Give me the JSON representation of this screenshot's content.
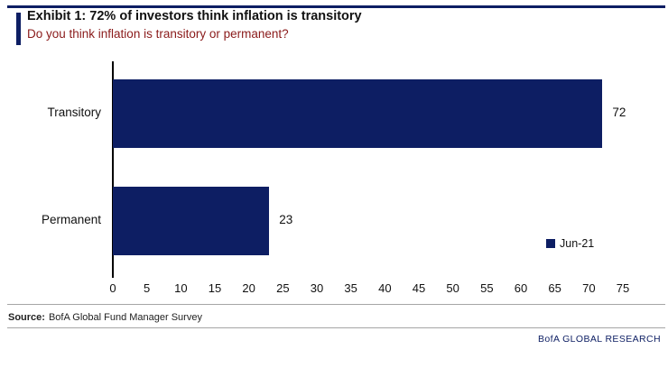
{
  "header": {
    "title": "Exhibit 1: 72% of investors think inflation is transitory",
    "subtitle": "Do you think inflation is transitory or permanent?"
  },
  "chart_data": {
    "type": "bar",
    "orientation": "horizontal",
    "title": "Exhibit 1: 72% of investors think inflation is transitory",
    "subtitle": "Do you think inflation is transitory or permanent?",
    "categories": [
      "Transitory",
      "Permanent"
    ],
    "values": [
      72,
      23
    ],
    "data_labels": [
      "72",
      "23"
    ],
    "legend": {
      "label": "Jun-21",
      "color": "#0d1e63",
      "position": "lower-right"
    },
    "xlim": [
      0,
      75
    ],
    "xticks": [
      0,
      5,
      10,
      15,
      20,
      25,
      30,
      35,
      40,
      45,
      50,
      55,
      60,
      65,
      70,
      75
    ],
    "bar_color": "#0d1e63",
    "grid": "off"
  },
  "footer": {
    "source_label": "Source:",
    "source_text": "BofA Global Fund Manager Survey",
    "branding": "BofA GLOBAL RESEARCH"
  },
  "colors": {
    "navy": "#0d1e63",
    "subtitle_red": "#8a1a1a"
  }
}
